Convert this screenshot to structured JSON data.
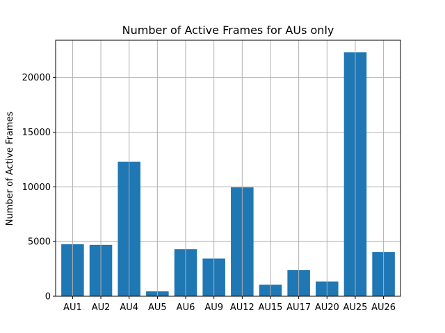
{
  "chart_data": {
    "type": "bar",
    "title": "Number of Active Frames for AUs only",
    "xlabel": "",
    "ylabel": "Number of Active Frames",
    "categories": [
      "AU1",
      "AU2",
      "AU4",
      "AU5",
      "AU6",
      "AU9",
      "AU12",
      "AU15",
      "AU17",
      "AU20",
      "AU25",
      "AU26"
    ],
    "values": [
      4750,
      4700,
      12300,
      450,
      4300,
      3450,
      9950,
      1050,
      2400,
      1350,
      22300,
      4050
    ],
    "ylim": [
      0,
      23400
    ],
    "yticks": [
      0,
      5000,
      10000,
      15000,
      20000
    ],
    "grid": true,
    "bar_color": "#1f77b4",
    "grid_color": "#b0b0b0"
  }
}
